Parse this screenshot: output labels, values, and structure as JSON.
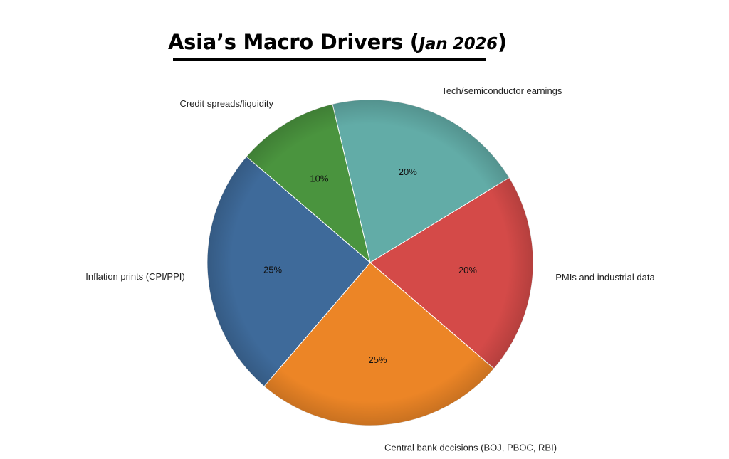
{
  "chart_data": {
    "type": "pie",
    "title": "Asia’s Macro Drivers (",
    "title_sub": "Jan 2026",
    "title_close": ")",
    "slices": [
      {
        "label": "Tech/semiconductor earnings",
        "value": 20,
        "pct_label": "20%",
        "color": "#62aca7"
      },
      {
        "label": "PMIs and industrial data",
        "value": 20,
        "pct_label": "20%",
        "color": "#d44a48"
      },
      {
        "label": "Central bank decisions (BOJ, PBOC, RBI)",
        "value": 25,
        "pct_label": "25%",
        "color": "#ec8526"
      },
      {
        "label": "Inflation prints (CPI/PPI)",
        "value": 25,
        "pct_label": "25%",
        "color": "#3e6a9a"
      },
      {
        "label": "Credit spreads/liquidity",
        "value": 10,
        "pct_label": "10%",
        "color": "#4a943e"
      }
    ],
    "start_angle_deg": -13.4,
    "direction": "clockwise",
    "legend": "none"
  }
}
